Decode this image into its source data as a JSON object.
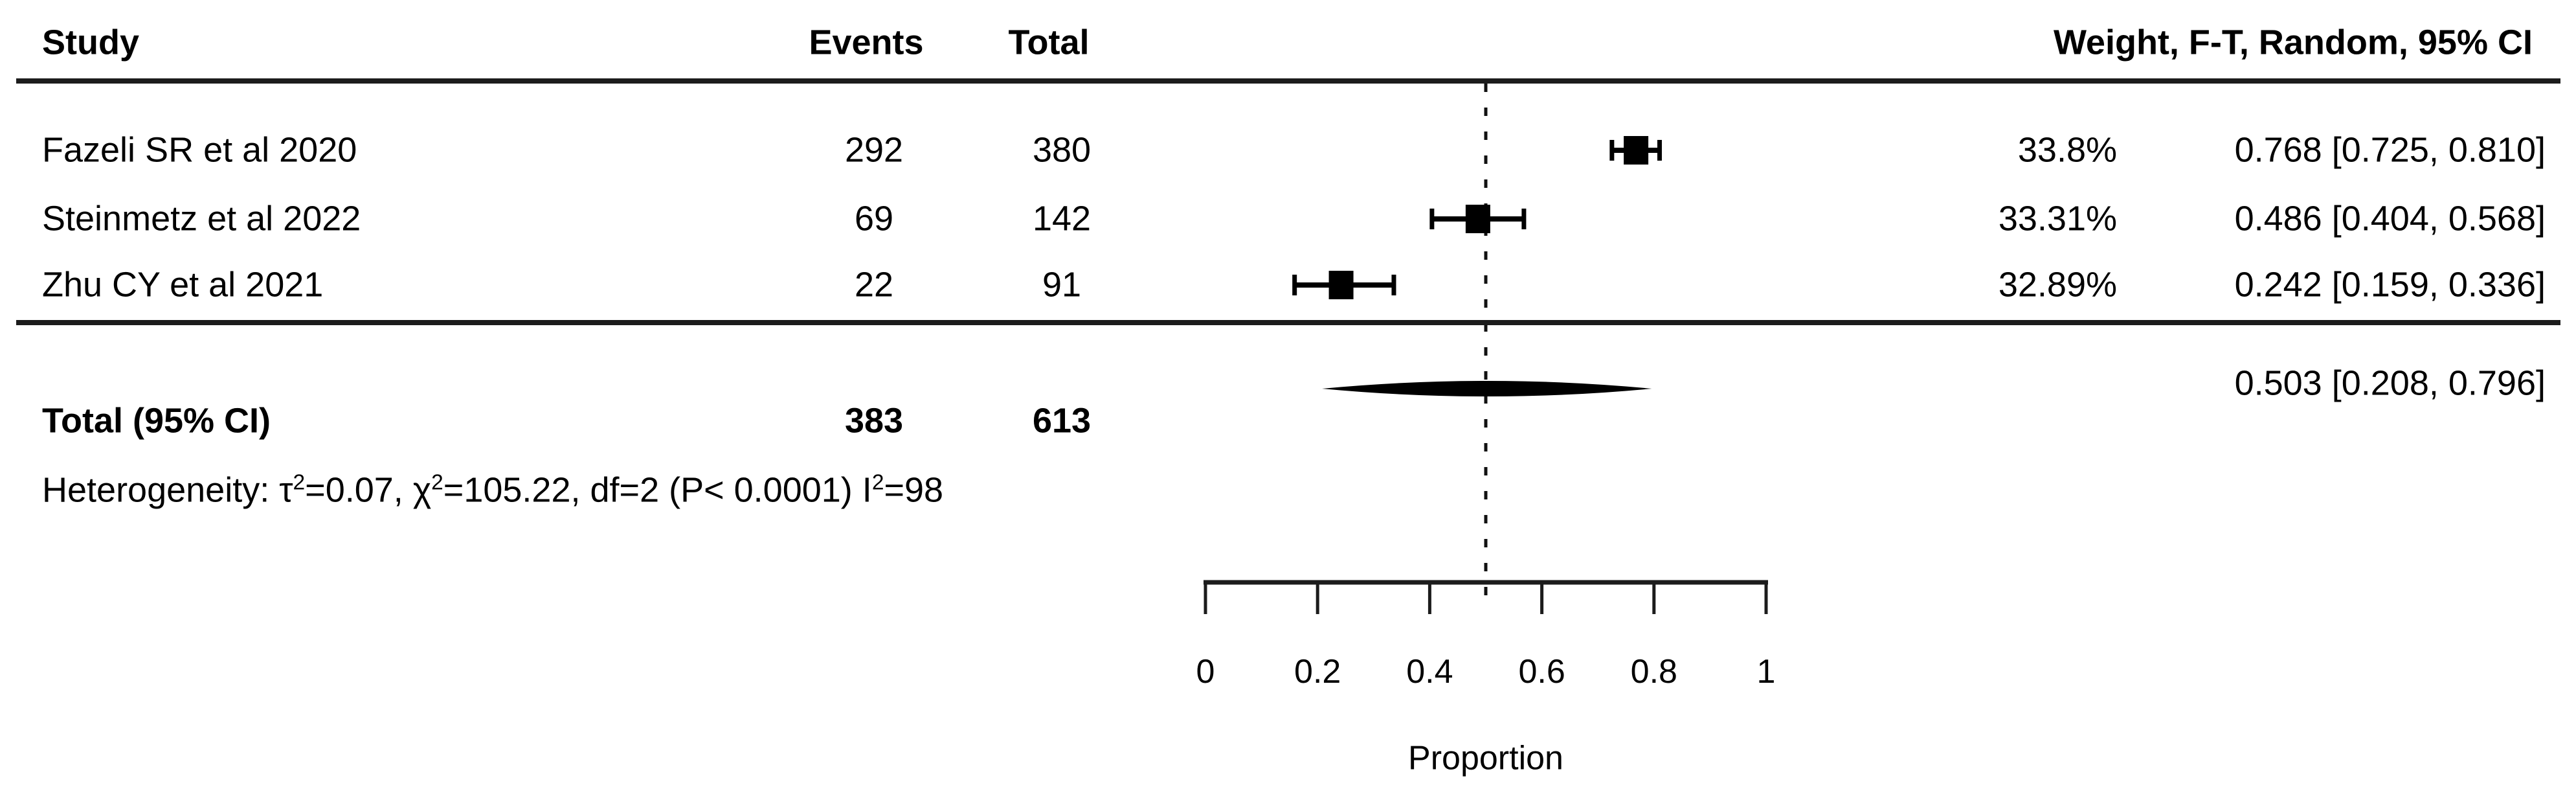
{
  "header": {
    "study": "Study",
    "events": "Events",
    "total": "Total",
    "weight_ci": "Weight, F-T, Random, 95% CI"
  },
  "chart_data": {
    "type": "scatter",
    "subtype": "forest-plot",
    "xlabel": "Proportion",
    "xlim": [
      0,
      1
    ],
    "xticks": [
      "0",
      "0.2",
      "0.4",
      "0.6",
      "0.8",
      "1"
    ],
    "xtick_values": [
      0,
      0.2,
      0.4,
      0.6,
      0.8,
      1
    ],
    "reference_line_x": 0.5,
    "marker_color": "#000000",
    "studies": [
      {
        "name": "Fazeli SR et al 2020",
        "events": "292",
        "total": "380",
        "weight_label": "33.8%",
        "estimate": 0.768,
        "ci_low": 0.725,
        "ci_high": 0.81,
        "ci_label": "0.768 [0.725, 0.810]"
      },
      {
        "name": "Steinmetz et al 2022",
        "events": "69",
        "total": "142",
        "weight_label": "33.31%",
        "estimate": 0.486,
        "ci_low": 0.404,
        "ci_high": 0.568,
        "ci_label": "0.486 [0.404, 0.568]"
      },
      {
        "name": "Zhu CY et al 2021",
        "events": "22",
        "total": "91",
        "weight_label": "32.89%",
        "estimate": 0.242,
        "ci_low": 0.159,
        "ci_high": 0.336,
        "ci_label": "0.242 [0.159, 0.336]"
      }
    ],
    "pooled": {
      "label": "Total (95% CI)",
      "events": "383",
      "total": "613",
      "estimate": 0.503,
      "ci_low": 0.208,
      "ci_high": 0.796,
      "ci_label": "0.503 [0.208, 0.796]"
    },
    "heterogeneity_segments": {
      "seg1": "Heterogeneity: τ",
      "sup1": "2",
      "seg2": "=0.07, χ",
      "sup2": "2",
      "seg3": "=105.22, df=2 (P< 0.0001) I",
      "sup3": "2",
      "seg4": "=98"
    },
    "heterogeneity_values": {
      "tau2": "0.07",
      "chi2": "105.22",
      "df": "2",
      "p": "P< 0.0001",
      "i2": "98"
    }
  }
}
